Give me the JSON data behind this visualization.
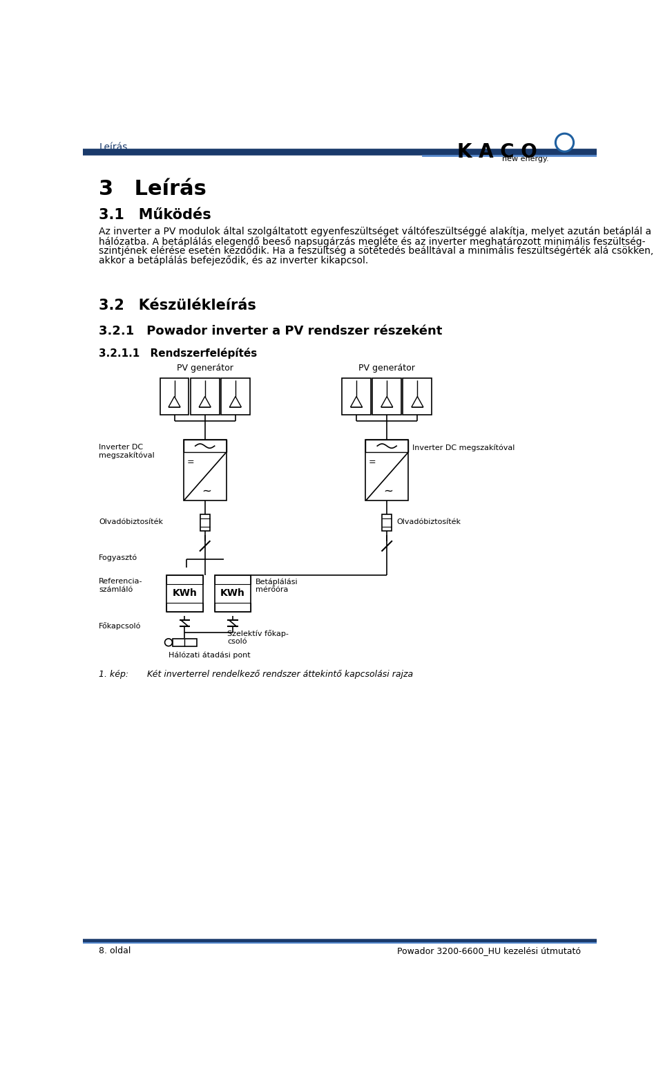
{
  "page_bg": "#ffffff",
  "header_text": "Leírás",
  "header_color": "#1a3a6b",
  "kaco_text": "K A C O",
  "kaco_subtitle": "new energy.",
  "divider_color": "#1a3a6b",
  "section3_title": "3 Leírás",
  "section31_title": "3.1 Működés",
  "section31_body_lines": [
    "Az inverter a PV modulok által szolgáltatott egyenfeszültséget váltófeszültséggé alakítja, melyet azután betáplál a",
    "hálózatba. A betáplálás elegendő beeső napsugárzás megléte és az inverter meghatározott minimális feszültség-",
    "szintjének elérése esetén kezdődik. Ha a feszültség a sötétedés beálltával a minimális feszültségérték alá csökken,",
    "akkor a betáplálás befejeződik, és az inverter kikapcsol."
  ],
  "section32_title": "3.2 Készülékleírás",
  "section321_title": "3.2.1 Powador inverter a PV rendszer részeként",
  "section3211_title": "3.2.1.1 Rendszerfelépítés",
  "pv_gen_label": "PV generátor",
  "inverter_dc_left": "Inverter DC\nmegszakítóval",
  "inverter_dc_right": "Inverter DC megszakítóval",
  "fuse_label": "Olvadóbiztosíték",
  "consumer_label": "Fogyasztó",
  "ref_counter_label": "Referencia-\nszámláló",
  "kwh_label": "KWh",
  "feed_meter_label": "Betáplálási\nmérőóra",
  "main_switch_label": "Főkapcsoló",
  "selective_label": "Szelektív főkap-\ncsoló",
  "network_label": "Hálózati átadási pont",
  "figure_caption_num": "1. kép:",
  "figure_caption_text": "Két inverterrel rendelkező rendszer áttekintő kapcsolási rajza",
  "footer_left": "8. oldal",
  "footer_right": "Powador 3200-6600_HU kezelési útmutató",
  "line_color": "#000000",
  "text_color": "#000000"
}
